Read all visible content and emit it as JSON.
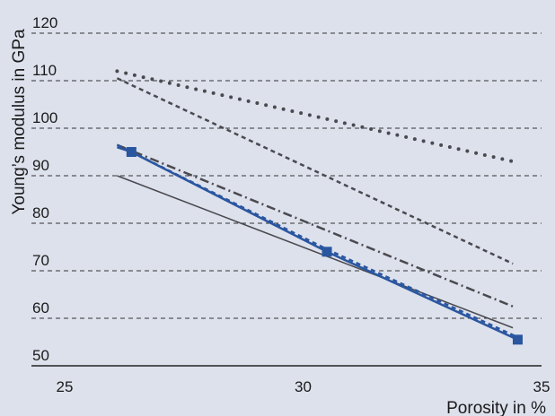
{
  "chart_data": {
    "type": "line",
    "title": "",
    "xlabel": "Porosity in %",
    "ylabel": "Young’s modulus in GPa",
    "xlim": [
      25,
      35
    ],
    "ylim": [
      50,
      120
    ],
    "xticks": [
      25,
      30,
      35
    ],
    "yticks": [
      50,
      60,
      70,
      80,
      90,
      100,
      110,
      120
    ],
    "grid": "horizontal dashed",
    "legend": "none",
    "series": [
      {
        "style": "dotted",
        "color": "#4a4a4f",
        "x": [
          26.1,
          34.4
        ],
        "y": [
          112,
          93
        ]
      },
      {
        "style": "dashed",
        "color": "#4a4a4f",
        "x": [
          26.1,
          34.4
        ],
        "y": [
          110.5,
          71.5
        ]
      },
      {
        "style": "dash-dot",
        "color": "#4a4a4f",
        "x": [
          26.1,
          34.4
        ],
        "y": [
          96.5,
          62.5
        ]
      },
      {
        "style": "solid",
        "color": "#4a4a4f",
        "x": [
          26.1,
          34.4
        ],
        "y": [
          90,
          58
        ]
      },
      {
        "style": "dashed",
        "color": "#2a56a0",
        "x": [
          26.1,
          26.4,
          30.5,
          34.5
        ],
        "y": [
          96.5,
          95,
          74.5,
          56
        ]
      },
      {
        "style": "solid-markers",
        "color": "#2a56a0",
        "x": [
          26.1,
          26.4,
          30.5,
          34.5
        ],
        "y": [
          96,
          95,
          74,
          55.5
        ]
      }
    ]
  }
}
